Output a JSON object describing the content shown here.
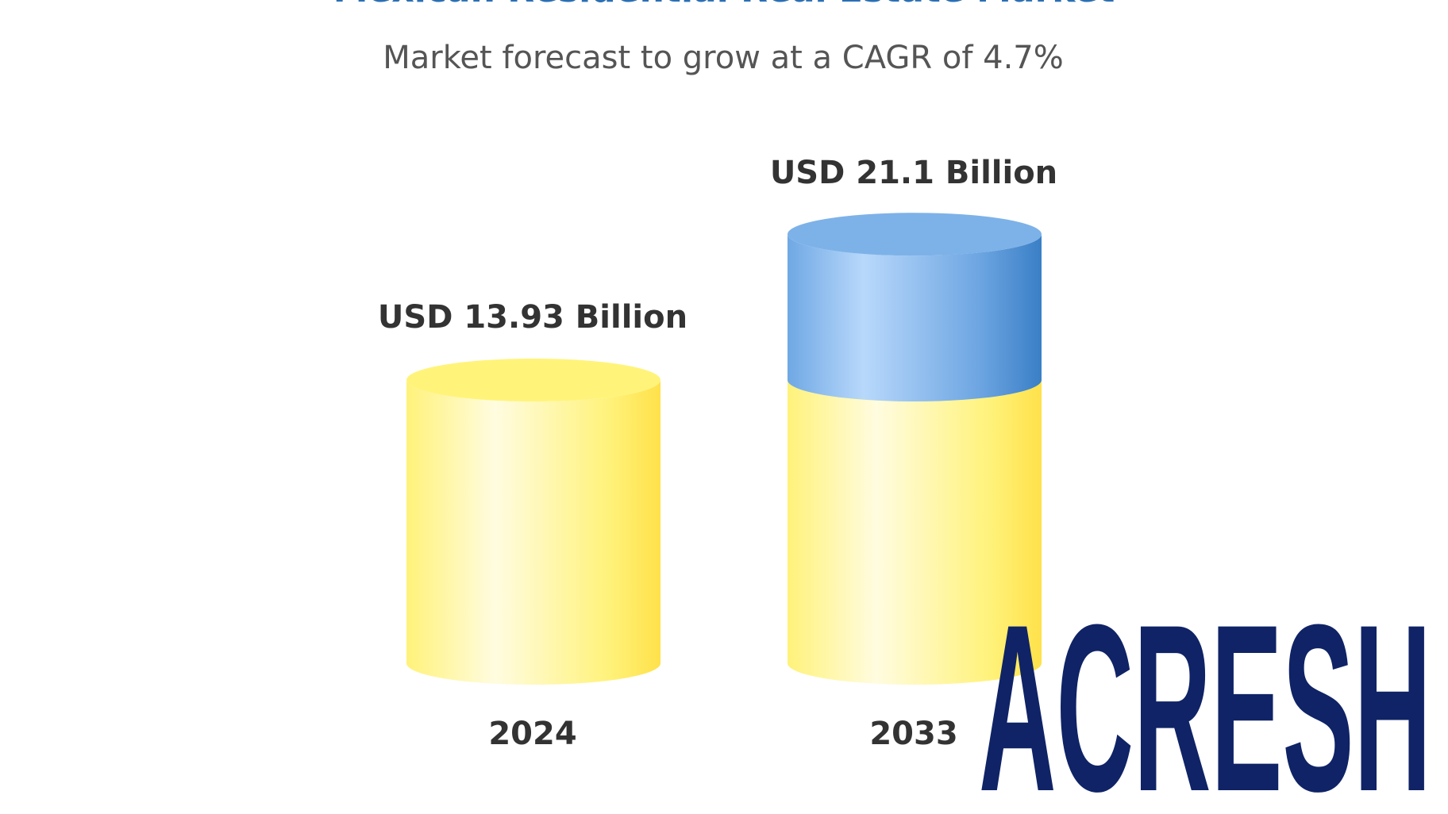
{
  "chart_data": {
    "type": "bar",
    "style": "3d-cylinder",
    "title": "Mexican Residential Real Estate Market",
    "subtitle": "Market forecast to grow at a CAGR of 4.7%",
    "categories": [
      "2024",
      "2033"
    ],
    "values": [
      13.93,
      21.1
    ],
    "data_labels": [
      "USD 13.93 Billion",
      "USD 21.1 Billion"
    ],
    "unit": "USD Billion",
    "colors": {
      "base": "#ffef6a",
      "growth": "#5b9ee0",
      "title": "#2a6fb5",
      "logo": "#0f2366"
    },
    "grid": false
  },
  "watermark": {
    "text": "ACRESH"
  }
}
